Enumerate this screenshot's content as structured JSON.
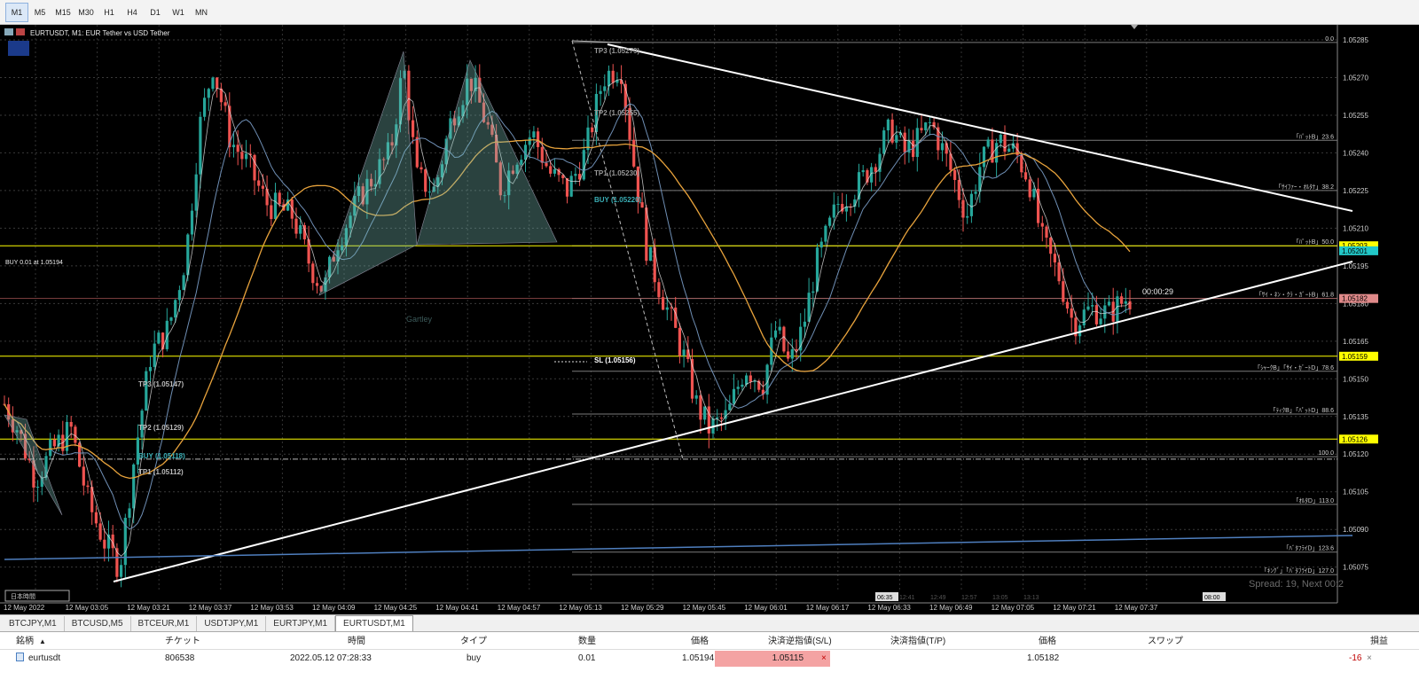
{
  "timeframes": [
    "M1",
    "M5",
    "M15",
    "M30",
    "H1",
    "H4",
    "D1",
    "W1",
    "MN"
  ],
  "active_timeframe": "M1",
  "chart": {
    "title": "EURTUSDT, M1:  EUR Tether vs USD Tether",
    "buy_info": "BUY 0.01 at 1.05194",
    "timer": "00:00:29",
    "spread_text": "Spread: 19, Next 00:2",
    "pattern_label": "Gartley",
    "local_time_label": "日本時間",
    "price_labels": [
      "1.05285",
      "1.05270",
      "1.05255",
      "1.05240",
      "1.05225",
      "1.05210",
      "1.05195",
      "1.05180",
      "1.05165",
      "1.05150",
      "1.05135",
      "1.05120",
      "1.05105",
      "1.05090",
      "1.05075"
    ],
    "time_labels": [
      "12 May 2022",
      "12 May 03:05",
      "12 May 03:21",
      "12 May 03:37",
      "12 May 03:53",
      "12 May 04:09",
      "12 May 04:25",
      "12 May 04:41",
      "12 May 04:57",
      "12 May 05:13",
      "12 May 05:29",
      "12 May 05:45",
      "12 May 06:01",
      "12 May 06:17",
      "12 May 06:33",
      "12 May 06:49",
      "12 May 07:05",
      "12 May 07:21",
      "12 May 07:37"
    ],
    "time_markers": [
      "06:35",
      "08:00"
    ],
    "time_markers_faint": [
      "12:41",
      "12:49",
      "12:57",
      "13:05",
      "13:13"
    ],
    "highlight_prices": [
      {
        "text": "1.05203",
        "color": "#ffff00",
        "text_color": "#000000"
      },
      {
        "text": "1.05201",
        "color": "#22c8c8",
        "text_color": "#000000"
      },
      {
        "text": "1.05182",
        "color": "#e08a8a",
        "text_color": "#000000"
      },
      {
        "text": "1.05159",
        "color": "#ffff00",
        "text_color": "#000000"
      },
      {
        "text": "1.05126",
        "color": "#ffff00",
        "text_color": "#000000"
      }
    ],
    "fib_labels": [
      "0.0",
      "「ﾊﾟｯﾄB」23.6",
      "「ｻｲﾌｧｰ・ｵﾙﾀﾅ」38.2",
      "「ﾊﾟｯﾄB」50.0",
      "「ｻｲ・ﾈﾝ・ｸﾗ・ｶﾞｰﾄB」61.8",
      "「ｼｬｰｸB」「ｻｲ・ｶﾞｰﾄD」78.6",
      "「ﾃｨｸB」「ﾊﾟｯﾄD」88.6",
      "100.0",
      "「ｵﾙﾀD」113.0",
      "「ﾊﾞﾀﾌﾗｲD」123.6",
      "「ｷﾝｸﾞ」「ﾊﾞﾀﾌﾗｲD」127.0"
    ],
    "annotations_right": [
      "TP3 (1.05279)",
      "TP2 (1.05255)",
      "TP1 (1.05230)",
      "BUY (1.05220)",
      "SL (1.05156)"
    ],
    "annotations_left": [
      "TP3 (1.05147)",
      "TP2 (1.05129)",
      "BUY (1.05118)",
      "TP1 (1.05112)"
    ]
  },
  "tabs": [
    "BTCJPY,M1",
    "BTCUSD,M5",
    "BTCEUR,M1",
    "USDTJPY,M1",
    "EURTJPY,M1",
    "EURTUSDT,M1"
  ],
  "active_tab": "EURTUSDT,M1",
  "terminal": {
    "headers": {
      "symbol": "銘柄",
      "ticket": "チケット",
      "time": "時間",
      "type": "タイプ",
      "volume": "数量",
      "price": "価格",
      "sl": "決済逆指値(S/L)",
      "tp": "決済指値(T/P)",
      "cur_price": "価格",
      "swap": "スワップ",
      "profit": "損益"
    },
    "row": {
      "symbol": "eurtusdt",
      "ticket": "806538",
      "time": "2022.05.12 07:28:33",
      "type": "buy",
      "volume": "0.01",
      "price": "1.05194",
      "sl": "1.05115",
      "tp": "",
      "cur_price": "1.05182",
      "swap": "",
      "profit": "-16"
    }
  },
  "colors": {
    "background": "#000000",
    "bull": "#26a69a",
    "bear": "#ef5350",
    "ma_fast": "#e6e6e6",
    "ma_mid": "#6f8fb5",
    "ma_slow": "#e8a33c",
    "trendline": "#ffffff",
    "level_yellow": "#ffff00",
    "fib_grey": "#9a9a9a"
  }
}
